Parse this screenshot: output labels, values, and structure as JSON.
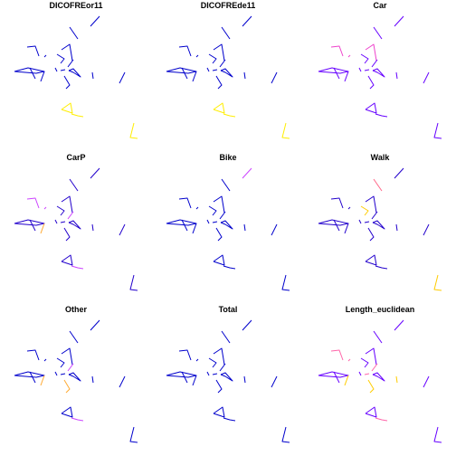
{
  "chart_data": {
    "type": "map",
    "layout": "3x3 small multiples",
    "panels": [
      {
        "title": "DICOFREor11",
        "palette": [
          "#0000cc",
          "#2a00e0",
          "#ffee00"
        ],
        "scheme": [
          "b",
          "b",
          "b",
          "b",
          "b",
          "b",
          "b",
          "b",
          "b",
          "b",
          "b",
          "b",
          "b",
          "b",
          "b",
          "b",
          "y",
          "y",
          "y"
        ]
      },
      {
        "title": "DICOFREde11",
        "palette": [
          "#0000cc",
          "#2a00e0",
          "#ffee00"
        ],
        "scheme": [
          "b",
          "b",
          "b",
          "b",
          "b",
          "b",
          "b",
          "b",
          "b",
          "b",
          "b",
          "b",
          "b",
          "b",
          "b",
          "b",
          "y",
          "y",
          "y"
        ]
      },
      {
        "title": "Car",
        "palette": [
          "#6600ff",
          "#ee44cc",
          "#ff66aa"
        ],
        "scheme": [
          "v",
          "v",
          "v",
          "p",
          "p",
          "v",
          "p",
          "v",
          "v",
          "v",
          "v",
          "v",
          "v",
          "v",
          "v",
          "v",
          "v",
          "v",
          "v"
        ]
      },
      {
        "title": "CarP",
        "palette": [
          "#2200cc",
          "#cc44ff",
          "#ffaa33"
        ],
        "scheme": [
          "b",
          "b",
          "o",
          "p",
          "p",
          "b",
          "b",
          "p",
          "b",
          "b",
          "b",
          "b",
          "b",
          "b",
          "b",
          "b",
          "b",
          "p",
          "b"
        ]
      },
      {
        "title": "Bike",
        "palette": [
          "#0000cc",
          "#cc44ff",
          "#ff8800"
        ],
        "scheme": [
          "b",
          "b",
          "b",
          "b",
          "b",
          "b",
          "b",
          "b",
          "b",
          "b",
          "b",
          "b",
          "b",
          "p",
          "b",
          "b",
          "b",
          "b",
          "b"
        ]
      },
      {
        "title": "Walk",
        "palette": [
          "#2200cc",
          "#ff6688",
          "#ffcc00"
        ],
        "scheme": [
          "b",
          "b",
          "b",
          "b",
          "b",
          "o",
          "b",
          "b",
          "b",
          "p",
          "b",
          "b",
          "b",
          "b",
          "b",
          "b",
          "b",
          "b",
          "y"
        ]
      },
      {
        "title": "Other",
        "palette": [
          "#0000cc",
          "#cc44ff",
          "#ffaa33"
        ],
        "scheme": [
          "b",
          "b",
          "o",
          "b",
          "b",
          "b",
          "b",
          "p",
          "b",
          "b",
          "o",
          "b",
          "b",
          "b",
          "b",
          "b",
          "b",
          "p",
          "b"
        ]
      },
      {
        "title": "Total",
        "palette": [
          "#0000cc",
          "#8800ff",
          "#ff8800"
        ],
        "scheme": [
          "b",
          "b",
          "b",
          "b",
          "b",
          "b",
          "b",
          "b",
          "b",
          "b",
          "b",
          "b",
          "b",
          "b",
          "b",
          "b",
          "b",
          "b",
          "b"
        ]
      },
      {
        "title": "Length_euclidean",
        "palette": [
          "#6600ff",
          "#ff66aa",
          "#ffcc00"
        ],
        "scheme": [
          "v",
          "v",
          "y",
          "p",
          "p",
          "v",
          "v",
          "p",
          "v",
          "v",
          "y",
          "p",
          "v",
          "v",
          "v",
          "y",
          "v",
          "p",
          "v"
        ]
      }
    ]
  }
}
